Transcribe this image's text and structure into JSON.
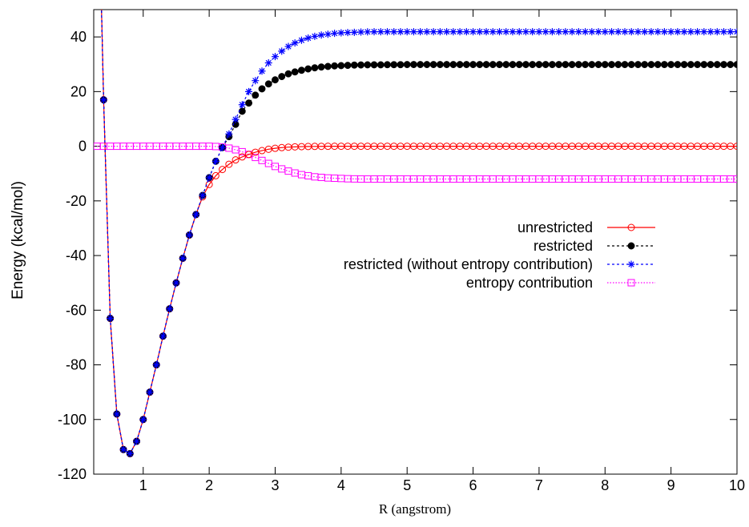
{
  "chart_data": {
    "type": "line",
    "title": "",
    "xlabel": "R (angstrom)",
    "ylabel": "Energy (kcal/mol)",
    "xlim": [
      0.25,
      10
    ],
    "ylim": [
      -120,
      50
    ],
    "xticks": [
      1,
      2,
      3,
      4,
      5,
      6,
      7,
      8,
      9,
      10
    ],
    "yticks": [
      -120,
      -100,
      -80,
      -60,
      -40,
      -20,
      0,
      20,
      40
    ],
    "grid": false,
    "legend_position": "right",
    "x_sampling": {
      "start": 0.3,
      "stop": 10.0,
      "step": 0.1
    },
    "series": [
      {
        "name": "unrestricted",
        "color": "#ff0000",
        "line_style": "solid",
        "marker": "open-circle",
        "values": [
          120.0,
          17.0,
          -63.0,
          -98.0,
          -111.0,
          -112.5,
          -108.0,
          -100.0,
          -90.0,
          -80.0,
          -69.5,
          -59.5,
          -50.0,
          -41.0,
          -32.5,
          -25.0,
          -18.5,
          -14.0,
          -10.8,
          -8.5,
          -6.6,
          -5.0,
          -3.9,
          -3.0,
          -2.2,
          -1.6,
          -1.1,
          -0.75,
          -0.5,
          -0.33,
          -0.22,
          -0.14,
          -0.09,
          -0.06,
          -0.04,
          -0.02,
          -0.01,
          0,
          0,
          0,
          0,
          0,
          0,
          0,
          0,
          0,
          0,
          0,
          0,
          0,
          0,
          0,
          0,
          0,
          0,
          0,
          0,
          0,
          0,
          0,
          0,
          0,
          0,
          0,
          0,
          0,
          0,
          0,
          0,
          0,
          0,
          0,
          0,
          0,
          0,
          0,
          0,
          0,
          0,
          0,
          0,
          0,
          0,
          0,
          0,
          0,
          0,
          0,
          0,
          0,
          0,
          0,
          0,
          0,
          0,
          0,
          0,
          0
        ]
      },
      {
        "name": "restricted",
        "color": "#000000",
        "line_style": "dashed",
        "marker": "filled-circle",
        "values": [
          120.0,
          17.0,
          -63.0,
          -98.0,
          -111.0,
          -112.5,
          -108.0,
          -100.0,
          -90.0,
          -80.0,
          -69.5,
          -59.5,
          -50.0,
          -41.0,
          -32.5,
          -25.0,
          -18.0,
          -11.5,
          -5.5,
          -0.5,
          3.5,
          8.0,
          12.8,
          15.8,
          18.7,
          21.0,
          22.8,
          24.3,
          25.5,
          26.5,
          27.2,
          27.8,
          28.3,
          28.7,
          29.0,
          29.2,
          29.4,
          29.5,
          29.6,
          29.7,
          29.75,
          29.8,
          29.8,
          29.8,
          29.85,
          29.85,
          29.85,
          29.9,
          29.9,
          29.9,
          29.9,
          29.9,
          29.9,
          29.9,
          29.9,
          29.9,
          29.9,
          29.9,
          29.9,
          29.9,
          29.9,
          29.9,
          29.9,
          29.9,
          29.9,
          29.9,
          29.9,
          29.9,
          29.9,
          29.9,
          29.9,
          29.9,
          29.9,
          29.9,
          29.9,
          29.9,
          29.9,
          29.9,
          29.9,
          29.9,
          29.9,
          29.9,
          29.9,
          29.9,
          29.9,
          29.9,
          29.9,
          29.9,
          29.9,
          29.9,
          29.9,
          29.9,
          29.9,
          29.9,
          29.9,
          29.9,
          29.9,
          29.9
        ]
      },
      {
        "name": "restricted (without entropy contribution)",
        "color": "#0000ff",
        "line_style": "dashed",
        "marker": "asterisk",
        "values": [
          120.0,
          17.0,
          -63.0,
          -98.0,
          -111.0,
          -112.5,
          -108.0,
          -100.0,
          -90.0,
          -80.0,
          -69.5,
          -59.5,
          -50.0,
          -41.0,
          -32.5,
          -25.0,
          -18.0,
          -11.5,
          -5.5,
          -0.5,
          4.5,
          9.8,
          15.2,
          20.0,
          24.0,
          27.5,
          30.5,
          32.8,
          34.8,
          36.5,
          37.8,
          38.8,
          39.6,
          40.2,
          40.7,
          41.0,
          41.3,
          41.5,
          41.6,
          41.7,
          41.8,
          41.85,
          41.9,
          41.9,
          41.9,
          41.9,
          41.9,
          41.9,
          41.9,
          41.9,
          41.9,
          41.9,
          41.9,
          41.9,
          41.9,
          41.9,
          41.9,
          41.9,
          41.9,
          41.9,
          41.9,
          41.9,
          41.9,
          41.9,
          41.9,
          41.9,
          41.9,
          41.9,
          41.9,
          41.9,
          41.9,
          41.9,
          41.9,
          41.9,
          41.9,
          41.9,
          41.9,
          41.9,
          41.9,
          41.9,
          41.9,
          41.9,
          41.9,
          41.9,
          41.9,
          41.9,
          41.9,
          41.9,
          41.9,
          41.9,
          41.9,
          41.9,
          41.9,
          41.9,
          41.9,
          41.9,
          41.9,
          41.9
        ]
      },
      {
        "name": "entropy contribution",
        "color": "#ff00ff",
        "line_style": "dotted",
        "marker": "open-square",
        "values": [
          0,
          0,
          0,
          0,
          0,
          0,
          0,
          0,
          0,
          0,
          0,
          0,
          0,
          0,
          0,
          0,
          0,
          0,
          -0.1,
          -0.3,
          -0.7,
          -1.3,
          -2.0,
          -3.0,
          -4.1,
          -5.2,
          -6.3,
          -7.4,
          -8.3,
          -9.1,
          -9.8,
          -10.4,
          -10.8,
          -11.2,
          -11.4,
          -11.6,
          -11.7,
          -11.8,
          -11.9,
          -11.95,
          -12.0,
          -12.0,
          -12.0,
          -12.0,
          -12.0,
          -12.0,
          -12.0,
          -12.0,
          -12.0,
          -12.0,
          -12.0,
          -12.0,
          -12.0,
          -12.0,
          -12.0,
          -12.0,
          -12.0,
          -12.0,
          -12.0,
          -12.0,
          -12.0,
          -12.0,
          -12.0,
          -12.0,
          -12.0,
          -12.0,
          -12.0,
          -12.0,
          -12.0,
          -12.0,
          -12.0,
          -12.0,
          -12.0,
          -12.0,
          -12.0,
          -12.0,
          -12.0,
          -12.0,
          -12.0,
          -12.0,
          -12.0,
          -12.0,
          -12.0,
          -12.0,
          -12.0,
          -12.0,
          -12.0,
          -12.0,
          -12.0,
          -12.0,
          -12.0,
          -12.0,
          -12.0,
          -12.0,
          -12.0,
          -12.0,
          -12.0,
          -12.0
        ]
      }
    ]
  }
}
